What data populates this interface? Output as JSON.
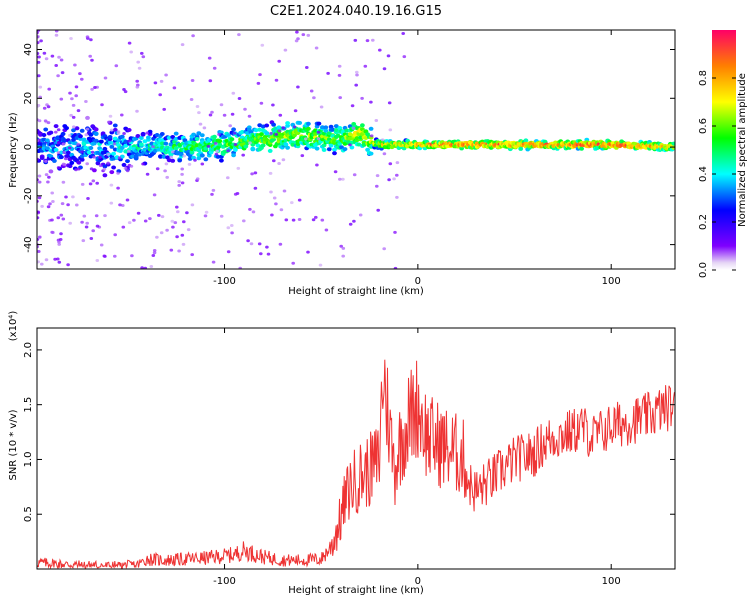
{
  "title": "C2E1.2024.040.19.16.G15",
  "chart_data": [
    {
      "type": "heatmap",
      "xlabel": "Height of straight line (km)",
      "ylabel": "Frequency (Hz)",
      "xlim": [
        -197,
        133
      ],
      "ylim": [
        -50,
        48
      ],
      "x_ticks": [
        -100,
        0,
        100
      ],
      "y_ticks": [
        -40,
        -20,
        0,
        20,
        40
      ],
      "colorbar": {
        "label": "Normalized spectral amplitude",
        "range": [
          0,
          1
        ],
        "ticks": [
          "0.0",
          "0.2",
          "0.4",
          "0.6",
          "0.8"
        ]
      },
      "ridge": {
        "x": [
          -197,
          -150,
          -120,
          -100,
          -80,
          -60,
          -50,
          -40,
          -30,
          -24,
          -20,
          0,
          25,
          50,
          75,
          100,
          133
        ],
        "freq": [
          0,
          0,
          0,
          1,
          3,
          5,
          4,
          3,
          6,
          2,
          1,
          1,
          1,
          1,
          1,
          1,
          0
        ],
        "amplitude": [
          0.3,
          0.4,
          0.5,
          0.55,
          0.6,
          0.65,
          0.6,
          0.55,
          0.7,
          0.65,
          0.75,
          0.82,
          0.85,
          0.85,
          0.87,
          0.92,
          0.75
        ]
      }
    },
    {
      "type": "line",
      "xlabel": "Height of straight line (km)",
      "ylabel": "SNR (10 * v/v)",
      "y_multiplier": "(x10⁴)",
      "xlim": [
        -197,
        133
      ],
      "ylim": [
        0.0,
        2.2
      ],
      "x_ticks": [
        -100,
        0,
        100
      ],
      "y_ticks": [
        0.5,
        1.0,
        1.5,
        2.0
      ],
      "series": [
        {
          "color": "#ee3333",
          "x": [
            -197,
            -180,
            -160,
            -145,
            -140,
            -130,
            -110,
            -95,
            -90,
            -80,
            -70,
            -60,
            -50,
            -45,
            -40,
            -38,
            -35,
            -30,
            -25,
            -20,
            -18,
            -16,
            -14,
            -12,
            -10,
            -5,
            0,
            5,
            10,
            15,
            20,
            24,
            26,
            30,
            40,
            50,
            60,
            65,
            70,
            80,
            85,
            90,
            95,
            100,
            110,
            120,
            125,
            133
          ],
          "y": [
            0.06,
            0.04,
            0.03,
            0.04,
            0.09,
            0.08,
            0.1,
            0.13,
            0.17,
            0.11,
            0.08,
            0.08,
            0.09,
            0.2,
            0.45,
            0.6,
            0.75,
            0.85,
            0.9,
            1.0,
            1.8,
            1.5,
            1.2,
            0.9,
            1.1,
            1.35,
            1.5,
            1.2,
            1.15,
            1.1,
            1.05,
            1.0,
            0.8,
            0.7,
            0.85,
            1.0,
            1.05,
            1.15,
            1.2,
            1.25,
            1.3,
            1.2,
            1.25,
            1.3,
            1.35,
            1.4,
            1.45,
            1.5
          ]
        }
      ]
    }
  ]
}
